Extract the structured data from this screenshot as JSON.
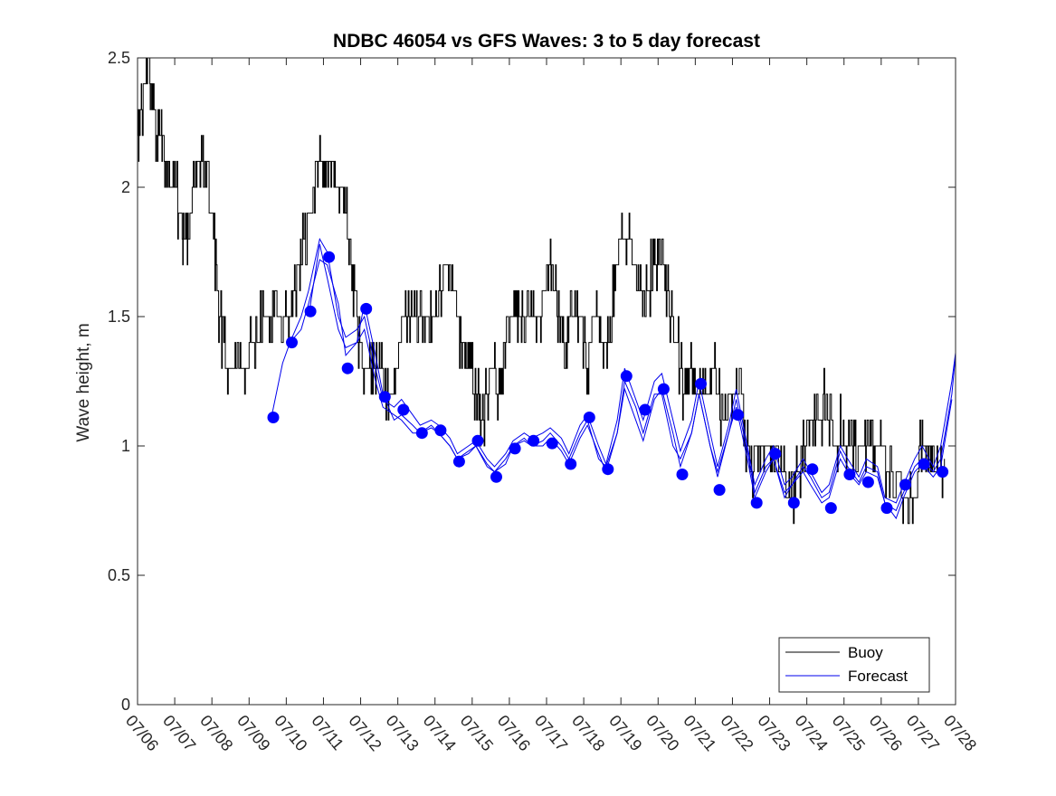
{
  "chart_data": {
    "type": "line",
    "title": "NDBC 46054 vs GFS Waves: 3 to 5 day forecast",
    "xlabel": "",
    "ylabel": "Wave height, m",
    "ylim": [
      0,
      2.5
    ],
    "yticks": [
      "0",
      "0.5",
      "1",
      "1.5",
      "2",
      "2.5"
    ],
    "x_start_day": 6,
    "x_end_day": 28,
    "xticks": [
      "07/06",
      "07/07",
      "07/08",
      "07/09",
      "07/10",
      "07/11",
      "07/12",
      "07/13",
      "07/14",
      "07/15",
      "07/16",
      "07/17",
      "07/18",
      "07/19",
      "07/20",
      "07/21",
      "07/22",
      "07/23",
      "07/24",
      "07/25",
      "07/26",
      "07/27",
      "07/28"
    ],
    "grid": false,
    "legend_position": "bottom-right",
    "colors": {
      "buoy": "#000000",
      "forecast": "#0000ee",
      "marker": "#0000ff"
    },
    "series": [
      {
        "name": "Buoy",
        "x": [
          6.0,
          6.1,
          6.2,
          6.3,
          6.4,
          6.55,
          6.7,
          6.85,
          7.0,
          7.2,
          7.35,
          7.5,
          7.7,
          7.85,
          8.0,
          8.2,
          8.4,
          8.6,
          8.8,
          9.0,
          9.3,
          9.6,
          9.9,
          10.1,
          10.3,
          10.5,
          10.7,
          10.9,
          11.1,
          11.3,
          11.5,
          11.7,
          11.9,
          12.1,
          12.3,
          12.5,
          12.7,
          12.9,
          13.1,
          13.3,
          13.5,
          13.7,
          13.9,
          14.1,
          14.3,
          14.5,
          14.7,
          14.9,
          15.1,
          15.3,
          15.5,
          15.7,
          15.9,
          16.1,
          16.3,
          16.5,
          16.7,
          16.9,
          17.1,
          17.3,
          17.5,
          17.7,
          17.9,
          18.1,
          18.3,
          18.5,
          18.7,
          18.9,
          19.1,
          19.3,
          19.5,
          19.7,
          19.9,
          20.1,
          20.3,
          20.5,
          20.7,
          20.9,
          21.1,
          21.3,
          21.5,
          21.7,
          21.9,
          22.1,
          22.3,
          22.5,
          22.7,
          22.9,
          23.1,
          23.3,
          23.5,
          23.7,
          23.9,
          24.1,
          24.3,
          24.5,
          24.7,
          24.9,
          25.1,
          25.3,
          25.5,
          25.7,
          25.9,
          26.1,
          26.3,
          26.5,
          26.7,
          26.9,
          27.1,
          27.3,
          27.5,
          27.7
        ],
        "values": [
          2.2,
          2.3,
          2.4,
          2.5,
          2.3,
          2.2,
          2.15,
          2.05,
          2.0,
          1.85,
          1.75,
          2.0,
          2.1,
          2.1,
          1.9,
          1.5,
          1.3,
          1.25,
          1.25,
          1.35,
          1.45,
          1.5,
          1.5,
          1.55,
          1.65,
          1.8,
          2.0,
          2.1,
          2.1,
          2.05,
          2.0,
          1.8,
          1.45,
          1.3,
          1.35,
          1.3,
          1.2,
          1.25,
          1.45,
          1.5,
          1.55,
          1.45,
          1.45,
          1.55,
          1.7,
          1.6,
          1.4,
          1.3,
          1.2,
          1.1,
          1.3,
          1.2,
          1.45,
          1.45,
          1.5,
          1.55,
          1.5,
          1.55,
          1.75,
          1.5,
          1.4,
          1.55,
          1.5,
          1.3,
          1.5,
          1.4,
          1.45,
          1.7,
          1.8,
          1.75,
          1.55,
          1.6,
          1.7,
          1.75,
          1.55,
          1.4,
          1.2,
          1.3,
          1.2,
          1.2,
          1.3,
          1.1,
          1.15,
          1.25,
          1.1,
          0.9,
          1.0,
          0.95,
          1.0,
          0.9,
          0.8,
          0.85,
          1.0,
          1.1,
          1.05,
          1.2,
          1.0,
          1.05,
          1.0,
          1.0,
          0.95,
          1.05,
          1.0,
          0.95,
          0.85,
          0.85,
          0.75,
          0.8,
          1.05,
          1.0,
          0.9,
          0.95
        ]
      },
      {
        "name": "Forecast",
        "runs": [
          {
            "x": [
              9.6,
              9.9,
              10.1,
              10.4,
              10.6,
              10.9,
              11.1,
              11.4,
              11.6,
              11.9,
              12.1,
              12.4,
              12.6,
              12.9,
              13.1,
              13.4,
              13.6,
              13.9,
              14.1,
              14.4,
              14.6,
              14.9,
              15.1,
              15.4,
              15.6,
              15.9,
              16.1,
              16.4,
              16.6,
              16.9,
              17.1,
              17.4,
              17.6,
              17.9,
              18.1,
              18.4,
              18.6,
              18.9,
              19.1,
              19.4,
              19.6,
              19.9,
              20.1,
              20.4,
              20.6,
              20.9,
              21.1,
              21.4,
              21.6,
              21.9,
              22.1,
              22.4,
              22.6,
              22.9,
              23.1,
              23.4,
              23.6,
              23.9,
              24.1,
              24.4,
              24.6,
              24.9,
              25.1,
              25.4,
              25.6,
              25.9,
              26.1,
              26.4,
              26.6,
              26.9,
              27.1,
              27.4,
              27.6,
              27.9,
              28.0
            ],
            "values": [
              1.11,
              1.32,
              1.4,
              1.45,
              1.55,
              1.72,
              1.7,
              1.55,
              1.35,
              1.4,
              1.55,
              1.35,
              1.2,
              1.1,
              1.12,
              1.08,
              1.05,
              1.07,
              1.05,
              1.0,
              0.95,
              0.97,
              1.0,
              0.93,
              0.9,
              0.95,
              1.0,
              1.03,
              1.0,
              1.02,
              1.05,
              1.0,
              0.95,
              1.05,
              1.1,
              0.95,
              0.92,
              1.05,
              1.25,
              1.15,
              1.05,
              1.2,
              1.2,
              1.0,
              0.95,
              1.05,
              1.2,
              1.0,
              0.88,
              1.05,
              1.15,
              0.95,
              0.8,
              0.9,
              0.95,
              0.8,
              0.85,
              0.9,
              0.85,
              0.78,
              0.8,
              0.95,
              0.9,
              0.85,
              0.9,
              0.88,
              0.78,
              0.75,
              0.82,
              0.92,
              0.95,
              0.9,
              0.95,
              1.2,
              1.35
            ]
          },
          {
            "x": [
              10.1,
              10.4,
              10.6,
              10.9,
              11.1,
              11.4,
              11.6,
              11.9,
              12.1,
              12.4,
              12.6,
              12.9,
              13.1,
              13.4,
              13.6,
              13.9,
              14.1,
              14.4,
              14.6,
              14.9,
              15.1,
              15.4,
              15.6,
              15.9,
              16.1,
              16.4,
              16.6,
              16.9,
              17.1,
              17.4,
              17.6,
              17.9,
              18.1,
              18.4,
              18.6,
              18.9,
              19.1,
              19.4,
              19.6,
              19.9,
              20.1,
              20.4,
              20.6,
              20.9,
              21.1,
              21.4,
              21.6,
              21.9,
              22.1,
              22.4,
              22.6,
              22.9,
              23.1,
              23.4,
              23.6,
              23.9,
              24.1,
              24.4,
              24.6,
              24.9,
              25.1,
              25.4,
              25.6,
              25.9,
              26.1,
              26.4,
              26.6,
              26.9,
              27.1,
              27.4,
              27.6,
              27.9,
              28.0
            ],
            "values": [
              1.4,
              1.5,
              1.6,
              1.8,
              1.75,
              1.5,
              1.42,
              1.45,
              1.5,
              1.3,
              1.18,
              1.15,
              1.18,
              1.12,
              1.08,
              1.1,
              1.08,
              1.03,
              0.97,
              1.0,
              1.02,
              0.95,
              0.92,
              0.97,
              1.02,
              1.05,
              1.03,
              1.05,
              1.07,
              1.03,
              0.97,
              1.08,
              1.12,
              1.0,
              0.93,
              1.1,
              1.3,
              1.18,
              1.1,
              1.25,
              1.28,
              1.1,
              0.98,
              1.1,
              1.25,
              1.05,
              0.92,
              1.08,
              1.22,
              1.0,
              0.85,
              0.95,
              1.0,
              0.85,
              0.88,
              0.95,
              0.9,
              0.82,
              0.85,
              1.0,
              0.95,
              0.88,
              0.95,
              0.92,
              0.8,
              0.78,
              0.85,
              0.95,
              1.0,
              0.92,
              1.0,
              1.25,
              1.36
            ]
          },
          {
            "x": [
              10.6,
              10.9,
              11.1,
              11.4,
              11.6,
              11.9,
              12.1,
              12.4,
              12.6,
              12.9,
              13.1,
              13.4,
              13.6,
              13.9,
              14.1,
              14.4,
              14.6,
              14.9,
              15.1,
              15.4,
              15.6,
              15.9,
              16.1,
              16.4,
              16.6,
              16.9,
              17.1,
              17.4,
              17.6,
              17.9,
              18.1,
              18.4,
              18.6,
              18.9,
              19.1,
              19.4,
              19.6,
              19.9,
              20.1,
              20.4,
              20.6,
              20.9,
              21.1,
              21.4,
              21.6,
              21.9,
              22.1,
              22.4,
              22.6,
              22.9,
              23.1,
              23.4,
              23.6,
              23.9,
              24.1,
              24.4,
              24.6,
              24.9,
              25.1,
              25.4,
              25.6,
              25.9,
              26.1,
              26.4,
              26.6,
              26.9,
              27.1,
              27.4,
              27.6,
              27.9
            ],
            "values": [
              1.5,
              1.78,
              1.65,
              1.45,
              1.38,
              1.4,
              1.45,
              1.25,
              1.15,
              1.12,
              1.1,
              1.05,
              1.05,
              1.08,
              1.05,
              1.0,
              0.95,
              0.98,
              1.0,
              0.92,
              0.9,
              0.93,
              1.0,
              1.02,
              1.0,
              1.0,
              1.03,
              0.98,
              0.93,
              1.03,
              1.08,
              0.97,
              0.9,
              1.05,
              1.22,
              1.1,
              1.02,
              1.18,
              1.22,
              1.05,
              0.92,
              1.05,
              1.2,
              1.0,
              0.9,
              1.05,
              1.18,
              0.98,
              0.82,
              0.92,
              0.95,
              0.82,
              0.85,
              0.92,
              0.88,
              0.8,
              0.82,
              0.98,
              0.92,
              0.86,
              0.92,
              0.9,
              0.78,
              0.72,
              0.8,
              0.9,
              0.93,
              0.88,
              0.92,
              1.18
            ]
          }
        ],
        "markers": {
          "x": [
            9.65,
            10.15,
            10.65,
            11.15,
            11.65,
            12.15,
            12.65,
            13.15,
            13.65,
            14.15,
            14.65,
            15.15,
            15.65,
            16.15,
            16.65,
            17.15,
            17.65,
            18.15,
            18.65,
            19.15,
            19.65,
            20.15,
            20.65,
            21.15,
            21.65,
            22.15,
            22.65,
            23.15,
            23.65,
            24.15,
            24.65,
            25.15,
            25.65,
            26.15,
            26.65,
            27.15,
            27.65
          ],
          "values": [
            1.11,
            1.4,
            1.52,
            1.73,
            1.3,
            1.53,
            1.19,
            1.14,
            1.05,
            1.06,
            0.94,
            1.02,
            0.88,
            0.99,
            1.02,
            1.01,
            0.93,
            1.11,
            0.91,
            1.27,
            1.14,
            1.22,
            0.89,
            1.24,
            0.83,
            1.12,
            0.78,
            0.97,
            0.78,
            0.91,
            0.76,
            0.89,
            0.86,
            0.76,
            0.85,
            0.93,
            0.9
          ]
        }
      }
    ]
  }
}
